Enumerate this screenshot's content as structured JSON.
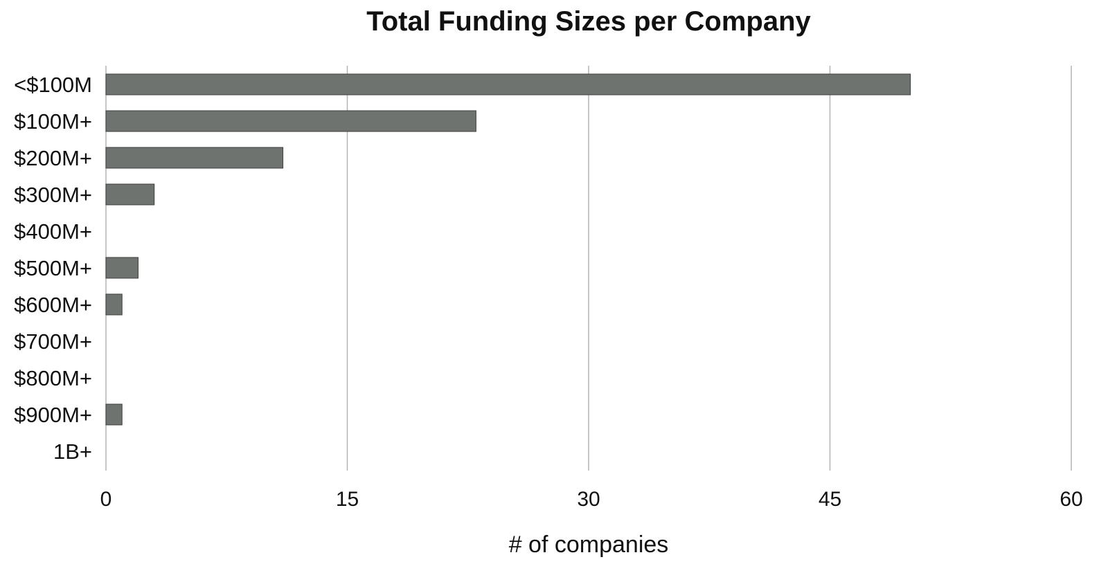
{
  "chart_data": {
    "type": "bar",
    "orientation": "horizontal",
    "title": "Total Funding Sizes per Company",
    "xlabel": "# of companies",
    "ylabel": "",
    "categories": [
      "<$100M",
      "$100M+",
      "$200M+",
      "$300M+",
      "$400M+",
      "$500M+",
      "$600M+",
      "$700M+",
      "$800M+",
      "$900M+",
      "1B+"
    ],
    "values": [
      50,
      23,
      11,
      3,
      0,
      2,
      1,
      0,
      0,
      1,
      0
    ],
    "xlim": [
      0,
      60
    ],
    "xticks": [
      0,
      15,
      30,
      45,
      60
    ],
    "grid": "vertical",
    "legend": "none",
    "bar_color": "#6f7370"
  }
}
